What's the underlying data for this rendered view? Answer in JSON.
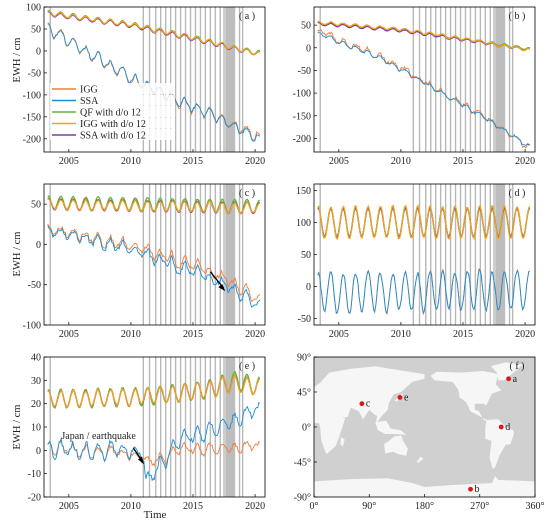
{
  "figure": {
    "x_label": "Time",
    "y_label": "EWH / cm",
    "legend": [
      "IGG",
      "SSA",
      "QF with d/o 12",
      "IGG with d/o 12",
      "SSA with d/o 12"
    ],
    "annotation_e": "Japan / earthquake",
    "map_x_ticks": [
      "0°",
      "90°",
      "180°",
      "270°",
      "360°"
    ],
    "map_y_ticks": [
      "90°",
      "45°",
      "0°",
      "-45°",
      "-90°"
    ]
  },
  "colors": {
    "IGG": "#f07d3c",
    "SSA": "#1a8fd6",
    "QF": "#5db83a",
    "IGG_do12": "#f3a41b",
    "SSA_do12": "#7b3fa6",
    "gap_line": "#b8b8b8",
    "gap_band": "#bdbdbd",
    "map_bg": "#d0d0d0",
    "land": "#f6f6f6",
    "station": "#e01414"
  },
  "chart_data": [
    {
      "type": "line",
      "panel": "a",
      "label": "( a )",
      "xlim": [
        2003,
        2020.8
      ],
      "ylim": [
        -230,
        100
      ],
      "x_ticks": [
        2005,
        2010,
        2015,
        2020
      ],
      "y_ticks": [
        100,
        50,
        0,
        -50,
        -100,
        -150,
        -200
      ],
      "series": [
        {
          "name": "IGG",
          "key": "IGG",
          "trend": [
            [
              2003,
              60
            ],
            [
              2010,
              -65
            ],
            [
              2015,
              -130
            ],
            [
              2020.4,
              -195
            ]
          ],
          "amp": 12,
          "noise": 10
        },
        {
          "name": "SSA",
          "key": "SSA",
          "trend": [
            [
              2003,
              58
            ],
            [
              2010,
              -62
            ],
            [
              2015,
              -128
            ],
            [
              2020.4,
              -200
            ]
          ],
          "amp": 11,
          "noise": 7
        },
        {
          "name": "QF with d/o 12",
          "key": "QF",
          "trend": [
            [
              2003,
              88
            ],
            [
              2010,
              60
            ],
            [
              2015,
              30
            ],
            [
              2018.5,
              5
            ],
            [
              2020.4,
              -5
            ]
          ],
          "amp": 6,
          "noise": 1
        },
        {
          "name": "IGG with d/o 12",
          "key": "IGG_do12",
          "trend": [
            [
              2003,
              88
            ],
            [
              2010,
              60
            ],
            [
              2015,
              30
            ],
            [
              2018.5,
              5
            ],
            [
              2020.4,
              -5
            ]
          ],
          "amp": 5,
          "noise": 2
        },
        {
          "name": "SSA with d/o 12",
          "key": "SSA_do12",
          "trend": [
            [
              2003,
              86
            ],
            [
              2010,
              58
            ],
            [
              2015,
              28
            ],
            [
              2018.5,
              4
            ],
            [
              2020.4,
              -6
            ]
          ],
          "amp": 5,
          "noise": 1
        }
      ]
    },
    {
      "type": "line",
      "panel": "b",
      "label": "( b )",
      "xlim": [
        2003,
        2020.8
      ],
      "ylim": [
        -230,
        90
      ],
      "x_ticks": [
        2005,
        2010,
        2015,
        2020
      ],
      "y_ticks": [
        50,
        0,
        -50,
        -100,
        -150,
        -200
      ],
      "series": [
        {
          "name": "IGG",
          "key": "IGG",
          "trend": [
            [
              2003,
              40
            ],
            [
              2008,
              -15
            ],
            [
              2012,
              -75
            ],
            [
              2016,
              -140
            ],
            [
              2020.4,
              -220
            ]
          ],
          "amp": 5,
          "noise": 10
        },
        {
          "name": "SSA",
          "key": "SSA",
          "trend": [
            [
              2003,
              35
            ],
            [
              2008,
              -18
            ],
            [
              2012,
              -78
            ],
            [
              2016,
              -142
            ],
            [
              2020.4,
              -218
            ]
          ],
          "amp": 4,
          "noise": 4
        },
        {
          "name": "QF with d/o 12",
          "key": "QF",
          "trend": [
            [
              2003,
              55
            ],
            [
              2010,
              40
            ],
            [
              2015,
              20
            ],
            [
              2020.4,
              -3
            ]
          ],
          "amp": 3,
          "noise": 1
        },
        {
          "name": "IGG with d/o 12",
          "key": "IGG_do12",
          "trend": [
            [
              2003,
              57
            ],
            [
              2010,
              41
            ],
            [
              2015,
              20
            ],
            [
              2020.4,
              -5
            ]
          ],
          "amp": 3,
          "noise": 2
        },
        {
          "name": "SSA with d/o 12",
          "key": "SSA_do12",
          "trend": [
            [
              2003,
              54
            ],
            [
              2010,
              38
            ],
            [
              2015,
              18
            ],
            [
              2020.4,
              -5
            ]
          ],
          "amp": 3,
          "noise": 1
        }
      ]
    },
    {
      "type": "line",
      "panel": "c",
      "label": "( c )",
      "xlim": [
        2003,
        2020.8
      ],
      "ylim": [
        -100,
        75
      ],
      "x_ticks": [
        2005,
        2010,
        2015,
        2020
      ],
      "y_ticks": [
        50,
        0,
        -50,
        -100
      ],
      "series": [
        {
          "name": "IGG",
          "key": "IGG",
          "trend": [
            [
              2003,
              22
            ],
            [
              2008,
              5
            ],
            [
              2012,
              -12
            ],
            [
              2016,
              -30
            ],
            [
              2020.4,
              -68
            ]
          ],
          "amp": 6,
          "noise": 7
        },
        {
          "name": "SSA",
          "key": "SSA",
          "trend": [
            [
              2003,
              20
            ],
            [
              2008,
              2
            ],
            [
              2012,
              -18
            ],
            [
              2016,
              -38
            ],
            [
              2020.4,
              -75
            ]
          ],
          "amp": 6,
          "noise": 7
        },
        {
          "name": "QF with d/o 12",
          "key": "QF",
          "trend": [
            [
              2003,
              52
            ],
            [
              2020.4,
              47
            ]
          ],
          "amp": 8,
          "noise": 1
        },
        {
          "name": "IGG with d/o 12",
          "key": "IGG_do12",
          "trend": [
            [
              2003,
              50
            ],
            [
              2020.4,
              45
            ]
          ],
          "amp": 6,
          "noise": 2
        },
        {
          "name": "SSA with d/o 12",
          "key": "SSA_do12",
          "trend": [
            [
              2003,
              50
            ],
            [
              2020.4,
              45
            ]
          ],
          "amp": 7,
          "noise": 1
        }
      ]
    },
    {
      "type": "line",
      "panel": "d",
      "label": "( d )",
      "xlim": [
        2003,
        2020.8
      ],
      "ylim": [
        -60,
        160
      ],
      "x_ticks": [
        2005,
        2010,
        2015,
        2020
      ],
      "y_ticks": [
        150,
        100,
        50,
        0,
        -50
      ],
      "series": [
        {
          "name": "IGG",
          "key": "IGG",
          "trend": [
            [
              2003,
              -10
            ],
            [
              2020.4,
              -5
            ]
          ],
          "amp": 30,
          "noise": 8
        },
        {
          "name": "SSA",
          "key": "SSA",
          "trend": [
            [
              2003,
              -10
            ],
            [
              2020.4,
              -5
            ]
          ],
          "amp": 30,
          "noise": 6
        },
        {
          "name": "QF with d/o 12",
          "key": "QF",
          "trend": [
            [
              2003,
              100
            ],
            [
              2020.4,
              100
            ]
          ],
          "amp": 22,
          "noise": 1
        },
        {
          "name": "IGG with d/o 12",
          "key": "IGG_do12",
          "trend": [
            [
              2003,
              100
            ],
            [
              2020.4,
              100
            ]
          ],
          "amp": 25,
          "noise": 3
        },
        {
          "name": "SSA with d/o 12",
          "key": "SSA_do12",
          "trend": [
            [
              2003,
              100
            ],
            [
              2020.4,
              100
            ]
          ],
          "amp": 23,
          "noise": 1
        }
      ]
    },
    {
      "type": "line",
      "panel": "e",
      "label": "( e )",
      "xlim": [
        2003,
        2020.8
      ],
      "ylim": [
        -20,
        40
      ],
      "x_ticks": [
        2005,
        2010,
        2015,
        2020
      ],
      "y_ticks": [
        40,
        30,
        20,
        10,
        0,
        -10,
        -20
      ],
      "annotation": "Japan / earthquake",
      "series": [
        {
          "name": "IGG",
          "key": "IGG",
          "trend": [
            [
              2003,
              1
            ],
            [
              2011,
              -2
            ],
            [
              2011.3,
              -6
            ],
            [
              2014,
              0
            ],
            [
              2020.4,
              2
            ]
          ],
          "amp": 2,
          "noise": 2.5
        },
        {
          "name": "SSA",
          "key": "SSA",
          "trend": [
            [
              2003,
              0
            ],
            [
              2011,
              0
            ],
            [
              2011.2,
              -15
            ],
            [
              2012.5,
              -5
            ],
            [
              2014,
              4
            ],
            [
              2017,
              10
            ],
            [
              2020.4,
              18
            ]
          ],
          "amp": 3,
          "noise": 3
        },
        {
          "name": "QF with d/o 12",
          "key": "QF",
          "trend": [
            [
              2003,
              22
            ],
            [
              2011,
              23
            ],
            [
              2016,
              26
            ],
            [
              2018.5,
              30
            ],
            [
              2020.4,
              27
            ]
          ],
          "amp": 4,
          "noise": 0.6
        },
        {
          "name": "IGG with d/o 12",
          "key": "IGG_do12",
          "trend": [
            [
              2003,
              22
            ],
            [
              2011,
              23
            ],
            [
              2016,
              26
            ],
            [
              2018.5,
              29
            ],
            [
              2020.4,
              27
            ]
          ],
          "amp": 3.5,
          "noise": 1
        },
        {
          "name": "SSA with d/o 12",
          "key": "SSA_do12",
          "trend": [
            [
              2003,
              22
            ],
            [
              2011,
              23
            ],
            [
              2016,
              26
            ],
            [
              2018.5,
              29
            ],
            [
              2020.4,
              27
            ]
          ],
          "amp": 3.5,
          "noise": 0.6
        }
      ]
    },
    {
      "type": "scatter",
      "panel": "f",
      "label": "( f )",
      "xlim": [
        0,
        360
      ],
      "ylim": [
        -90,
        90
      ],
      "stations": [
        {
          "label": "a",
          "lon": 317,
          "lat": 62
        },
        {
          "label": "b",
          "lon": 255,
          "lat": -80
        },
        {
          "label": "c",
          "lon": 78,
          "lat": 30
        },
        {
          "label": "d",
          "lon": 305,
          "lat": 0
        },
        {
          "label": "e",
          "lon": 140,
          "lat": 38
        }
      ]
    }
  ]
}
